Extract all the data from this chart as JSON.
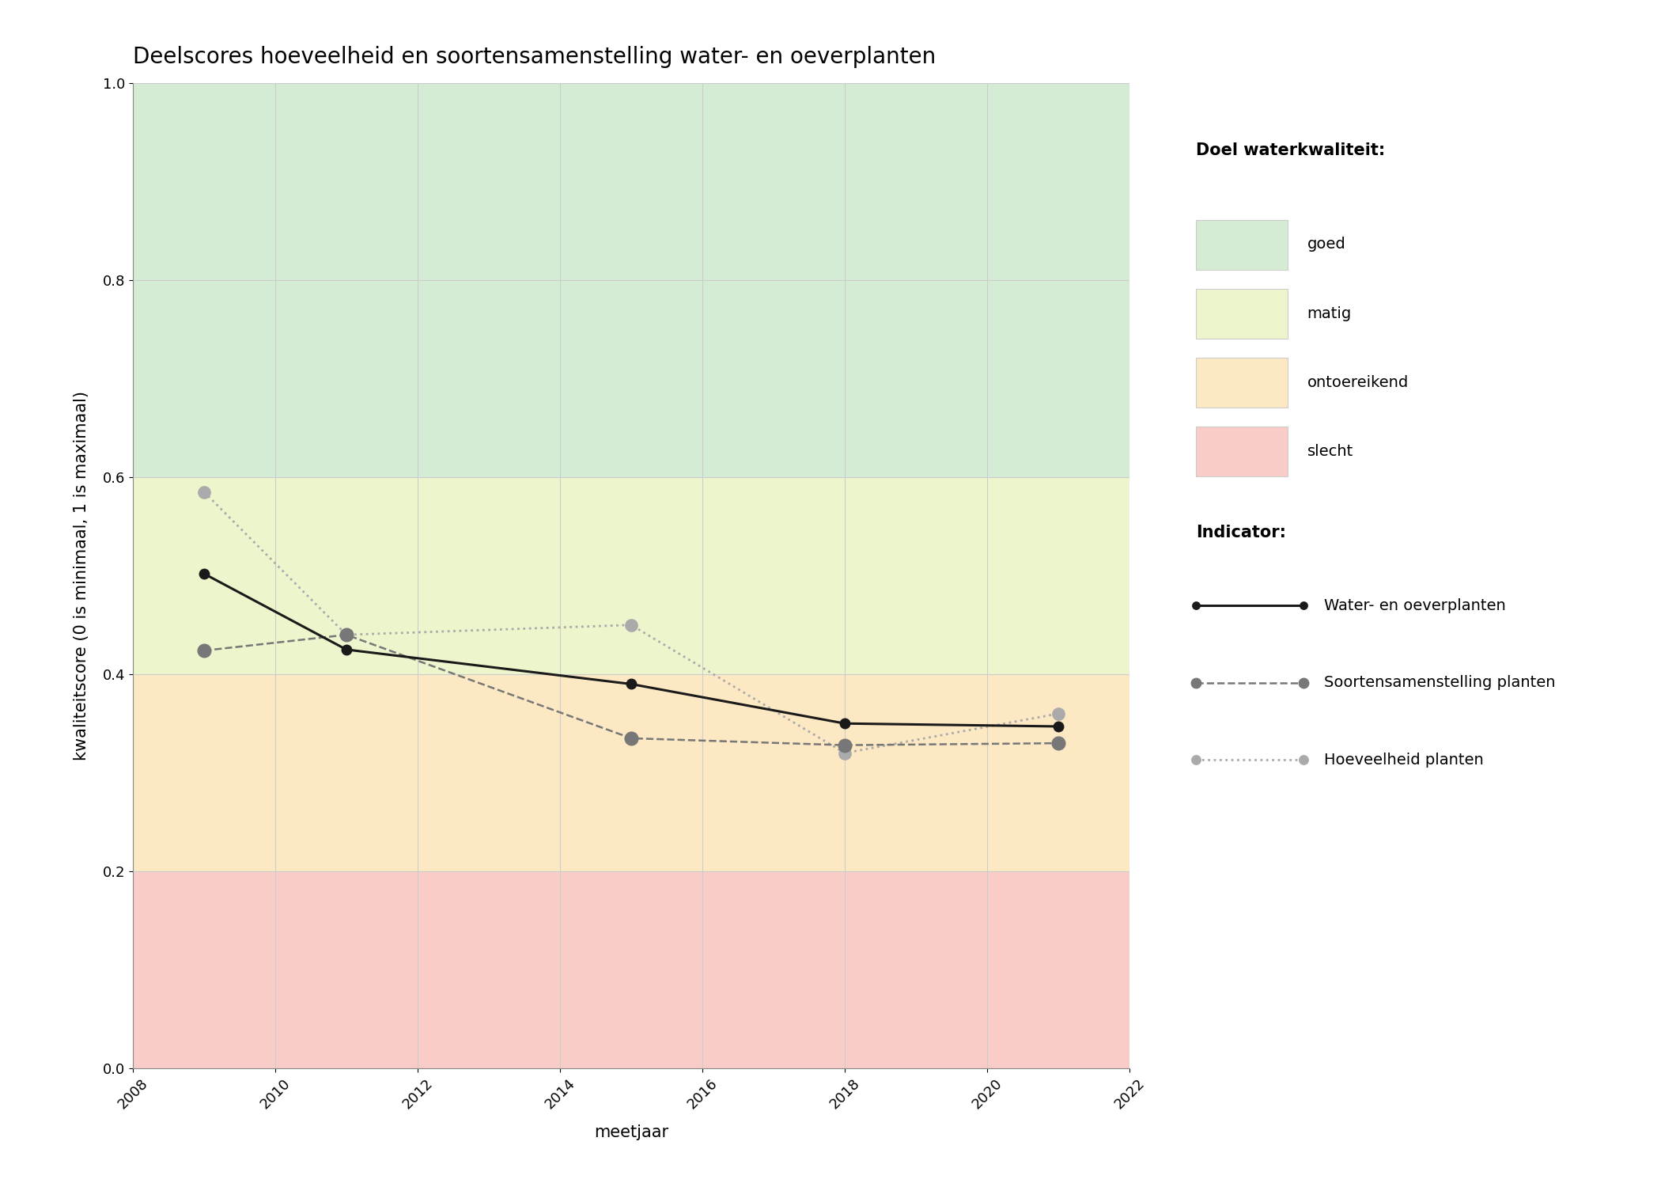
{
  "title": "Deelscores hoeveelheid en soortensamenstelling water- en oeverplanten",
  "xlabel": "meetjaar",
  "ylabel": "kwaliteitscore (0 is minimaal, 1 is maximaal)",
  "xlim": [
    2008,
    2022
  ],
  "ylim": [
    0.0,
    1.0
  ],
  "xticks": [
    2008,
    2010,
    2012,
    2014,
    2016,
    2018,
    2020,
    2022
  ],
  "yticks": [
    0.0,
    0.2,
    0.4,
    0.6,
    0.8,
    1.0
  ],
  "bg_zones": [
    {
      "ymin": 0.6,
      "ymax": 1.0,
      "color": "#d5ecd4",
      "label": "goed"
    },
    {
      "ymin": 0.4,
      "ymax": 0.6,
      "color": "#edf5cc",
      "label": "matig"
    },
    {
      "ymin": 0.2,
      "ymax": 0.4,
      "color": "#fce8c3",
      "label": "ontoereikend"
    },
    {
      "ymin": 0.0,
      "ymax": 0.2,
      "color": "#f9ccc8",
      "label": "slecht"
    }
  ],
  "series": [
    {
      "name": "Water- en oeverplanten",
      "years": [
        2009,
        2011,
        2015,
        2018,
        2021
      ],
      "values": [
        0.502,
        0.425,
        0.39,
        0.35,
        0.347
      ],
      "color": "#1a1a1a",
      "linestyle": "solid",
      "linewidth": 2.2,
      "markersize": 9,
      "zorder": 5
    },
    {
      "name": "Soortensamenstelling planten",
      "years": [
        2009,
        2011,
        2015,
        2018,
        2021
      ],
      "values": [
        0.424,
        0.44,
        0.335,
        0.328,
        0.33
      ],
      "color": "#777777",
      "linestyle": "dashed",
      "linewidth": 1.8,
      "markersize": 12,
      "zorder": 4
    },
    {
      "name": "Hoeveelheid planten",
      "years": [
        2009,
        2011,
        2015,
        2018,
        2021
      ],
      "values": [
        0.585,
        0.44,
        0.45,
        0.32,
        0.36
      ],
      "color": "#aaaaaa",
      "linestyle": "dotted",
      "linewidth": 2.0,
      "markersize": 11,
      "zorder": 3
    }
  ],
  "legend_quality_title": "Doel waterkwaliteit:",
  "legend_indicator_title": "Indicator:",
  "grid_color": "#cccccc",
  "background_color": "#ffffff",
  "title_fontsize": 20,
  "axis_label_fontsize": 15,
  "tick_fontsize": 13,
  "legend_fontsize": 14
}
